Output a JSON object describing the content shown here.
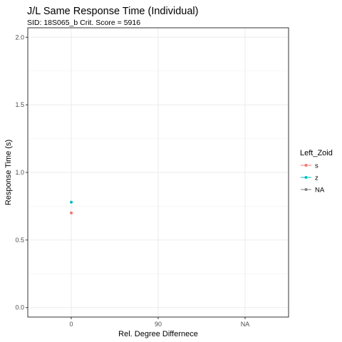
{
  "chart_data": {
    "type": "scatter",
    "title": "J/L Same Response Time (Individual)",
    "subtitle": "SID:  18S065_b Crit. Score =  5916",
    "xlabel": "Rel. Degree Differnece",
    "ylabel": "Response Time (s)",
    "x_categories": [
      "0",
      "90",
      "NA"
    ],
    "ylim": [
      -0.07,
      2.07
    ],
    "yticks": [
      0.0,
      0.5,
      1.0,
      1.5,
      2.0
    ],
    "ytick_labels": [
      "0.0",
      "0.5",
      "1.0",
      "1.5",
      "2.0"
    ],
    "grid": true,
    "legend": {
      "title": "Left_Zoid",
      "placement": "right"
    },
    "series": [
      {
        "name": "s",
        "color": "#F8766D",
        "points": [
          {
            "x": "0",
            "y": 0.7
          }
        ]
      },
      {
        "name": "z",
        "color": "#00BFC4",
        "points": [
          {
            "x": "0",
            "y": 0.78
          }
        ]
      },
      {
        "name": "NA",
        "color": "#7F7F7F",
        "points": []
      }
    ]
  }
}
